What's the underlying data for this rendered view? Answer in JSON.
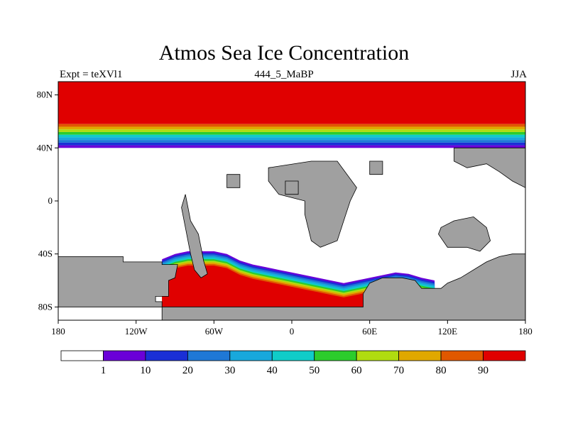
{
  "figure": {
    "title": "Atmos Sea Ice Concentration",
    "left_string": "Expt = teXVl1",
    "center_string": "444_5_MaBP",
    "right_string": "JJA"
  },
  "chart_data": {
    "type": "heatmap",
    "title": "Atmos Sea Ice Concentration",
    "projection": "cylindrical-equidistant",
    "lon_range": [
      -180,
      180
    ],
    "lat_range": [
      -90,
      90
    ],
    "x_ticks": [
      {
        "value": -180,
        "label": "180"
      },
      {
        "value": -120,
        "label": "120W"
      },
      {
        "value": -60,
        "label": "60W"
      },
      {
        "value": 0,
        "label": "0"
      },
      {
        "value": 60,
        "label": "60E"
      },
      {
        "value": 120,
        "label": "120E"
      },
      {
        "value": 180,
        "label": "180"
      }
    ],
    "y_ticks": [
      {
        "value": 80,
        "label": "80N"
      },
      {
        "value": 40,
        "label": "40N"
      },
      {
        "value": 0,
        "label": "0"
      },
      {
        "value": -40,
        "label": "40S"
      },
      {
        "value": -80,
        "label": "80S"
      }
    ],
    "colorbar": {
      "levels": [
        "1",
        "10",
        "20",
        "30",
        "40",
        "50",
        "60",
        "70",
        "80",
        "90"
      ],
      "colors": [
        "#ffffff",
        "#6a00d8",
        "#1a2fd6",
        "#1f78d6",
        "#18a8dc",
        "#10ccc8",
        "#2ccc2c",
        "#b0dc10",
        "#e0a800",
        "#e05800",
        "#e00000"
      ]
    },
    "land_color": "#a0a0a0",
    "north_band": {
      "lat_edges": [
        40,
        42,
        44,
        46,
        48,
        50,
        52,
        54,
        56,
        58
      ],
      "full_ice_lat_min": 58
    },
    "south_ice_edge": {
      "lon": [
        -100,
        -90,
        -80,
        -70,
        -60,
        -50,
        -40,
        -30,
        -20,
        -10,
        0,
        10,
        20,
        30,
        40,
        50,
        60,
        70,
        80,
        90,
        100,
        110
      ],
      "lat": [
        -44,
        -40,
        -38,
        -38,
        -38,
        -40,
        -45,
        -48,
        -50,
        -52,
        -54,
        -56,
        -58,
        -60,
        -62,
        -60,
        -58,
        -56,
        -54,
        -55,
        -58,
        -60
      ]
    }
  }
}
